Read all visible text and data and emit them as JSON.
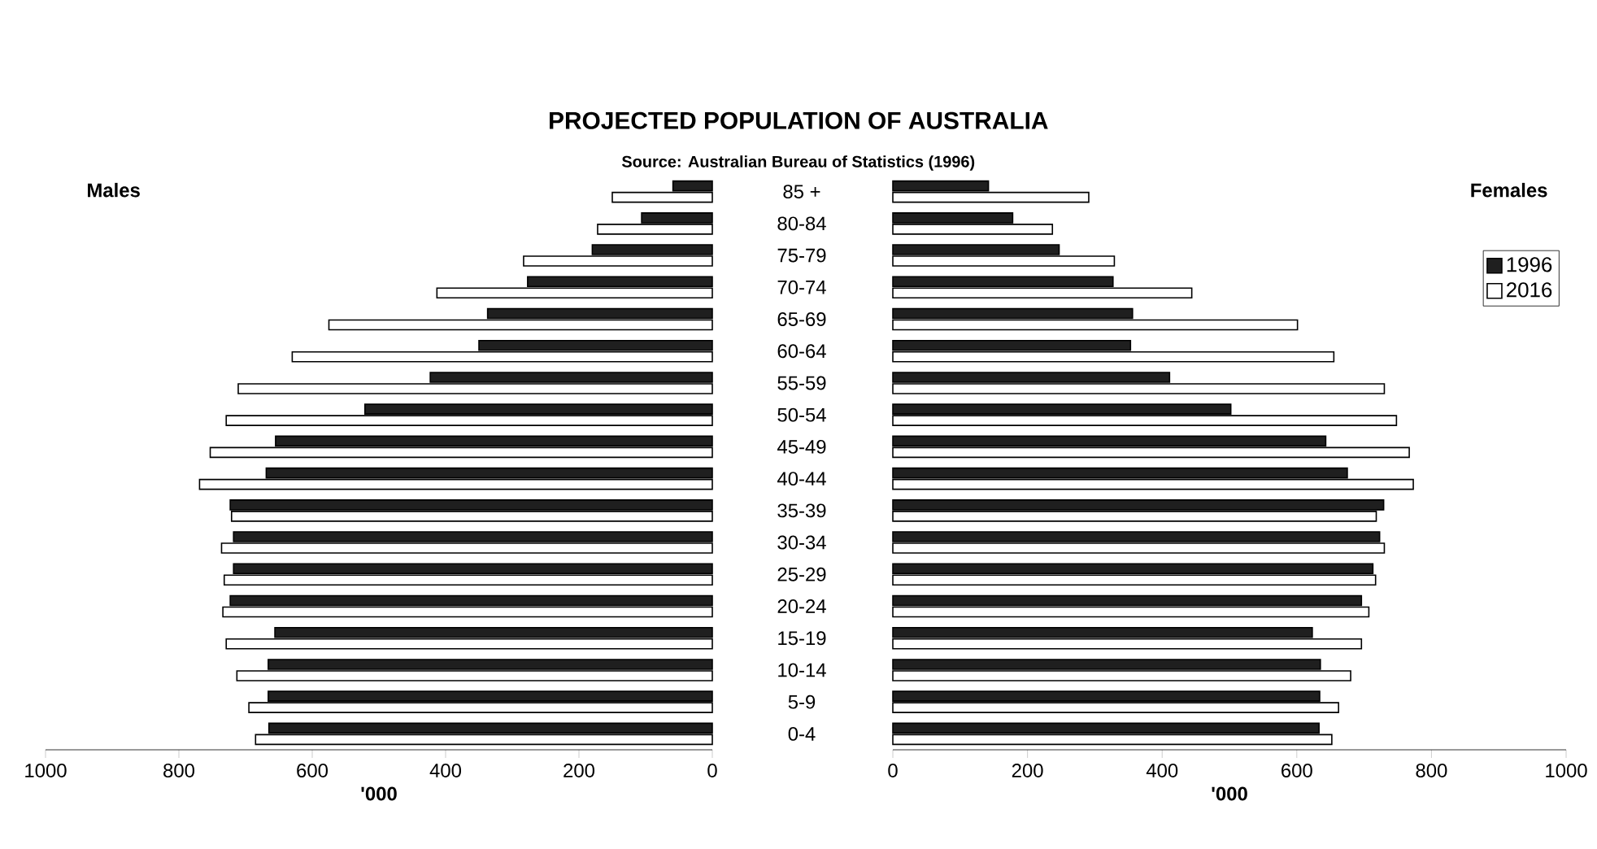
{
  "chart_data": [
    {
      "type": "bar",
      "orientation": "horizontal",
      "title": "PROJECTED POPULATION OF AUSTRALIA",
      "subtitle": "Source: Australian Bureau of Statistics (1996)",
      "ylabel": "Males",
      "xlabel": "'000",
      "categories": [
        "85 +",
        "80-84",
        "75-79",
        "70-74",
        "65-69",
        "60-64",
        "55-59",
        "50-54",
        "45-49",
        "40-44",
        "35-39",
        "30-34",
        "25-29",
        "20-24",
        "15-19",
        "10-14",
        "5-9",
        "0-4"
      ],
      "series": [
        {
          "color": "#1f1f1f",
          "values": [
            59,
            106,
            180,
            277,
            337,
            350,
            423,
            521,
            655,
            669,
            723,
            718,
            718,
            723,
            656,
            666,
            666,
            665
          ]
        },
        {
          "color": "#ffffff",
          "values": [
            150,
            172,
            283,
            413,
            575,
            630,
            711,
            729,
            753,
            769,
            721,
            736,
            732,
            734,
            729,
            713,
            695,
            685
          ]
        }
      ],
      "xlim": [
        1000,
        0
      ],
      "xticks": [
        1000,
        800,
        600,
        400,
        200,
        0
      ]
    },
    {
      "type": "bar",
      "orientation": "horizontal",
      "ylabel": "Females",
      "xlabel": "'000",
      "legend": "top right",
      "series": [
        {
          "name": "1996",
          "color": "#1f1f1f",
          "values": [
            142,
            178,
            247,
            327,
            356,
            353,
            411,
            502,
            643,
            675,
            729,
            723,
            713,
            696,
            623,
            635,
            634,
            633
          ]
        },
        {
          "name": "2016",
          "color": "#ffffff",
          "values": [
            291,
            237,
            329,
            444,
            601,
            655,
            730,
            748,
            767,
            773,
            718,
            730,
            717,
            707,
            696,
            680,
            662,
            652
          ]
        }
      ],
      "xlim": [
        0,
        1000
      ],
      "xticks": [
        0,
        200,
        400,
        600,
        800,
        1000
      ],
      "tick_labels": "x"
    }
  ]
}
